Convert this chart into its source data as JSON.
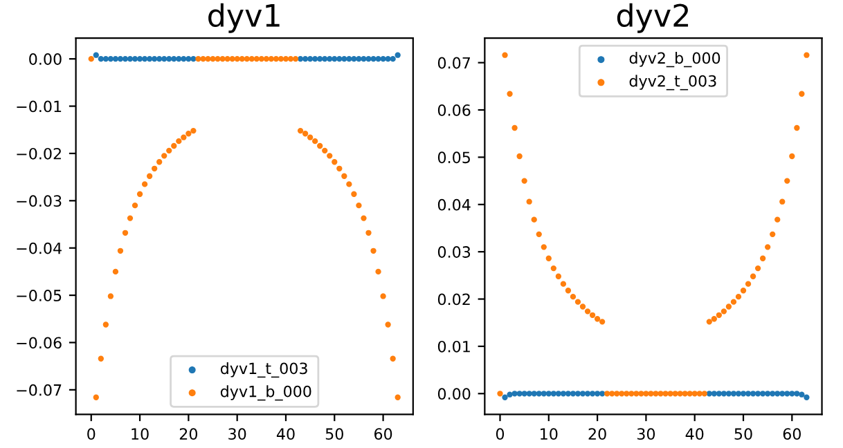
{
  "chart_data": [
    {
      "type": "scatter",
      "title": "dyv1",
      "x": [
        0,
        1,
        2,
        3,
        4,
        5,
        6,
        7,
        8,
        9,
        10,
        11,
        12,
        13,
        14,
        15,
        16,
        17,
        18,
        19,
        20,
        21,
        22,
        23,
        24,
        25,
        26,
        27,
        28,
        29,
        30,
        31,
        32,
        33,
        34,
        35,
        36,
        37,
        38,
        39,
        40,
        41,
        42,
        43,
        44,
        45,
        46,
        47,
        48,
        49,
        50,
        51,
        52,
        53,
        54,
        55,
        56,
        57,
        58,
        59,
        60,
        61,
        62,
        63
      ],
      "series": [
        {
          "name": "dyv1_t_003",
          "color": "#1f77b4",
          "values": [
            null,
            0.0008,
            0,
            0,
            0,
            0,
            0,
            0,
            0,
            0,
            0,
            0,
            0,
            0,
            0,
            0,
            0,
            0,
            0,
            0,
            0,
            0,
            null,
            null,
            null,
            null,
            null,
            null,
            null,
            null,
            null,
            null,
            null,
            null,
            null,
            null,
            null,
            null,
            null,
            null,
            null,
            null,
            null,
            0,
            0,
            0,
            0,
            0,
            0,
            0,
            0,
            0,
            0,
            0,
            0,
            0,
            0,
            0,
            0,
            0,
            0,
            0,
            0,
            0.0008
          ]
        },
        {
          "name": "dyv1_b_000",
          "color": "#ff7f0e",
          "values": [
            0,
            -0.0716,
            -0.0634,
            -0.0562,
            -0.0502,
            -0.045,
            -0.0406,
            -0.0368,
            -0.0337,
            -0.031,
            -0.0286,
            -0.0265,
            -0.0248,
            -0.0232,
            -0.0218,
            -0.0205,
            -0.0194,
            -0.0184,
            -0.0174,
            -0.0166,
            -0.0158,
            -0.0152,
            0,
            0,
            0,
            0,
            0,
            0,
            0,
            0,
            0,
            0,
            0,
            0,
            0,
            0,
            0,
            0,
            0,
            0,
            0,
            0,
            0,
            -0.0152,
            -0.0158,
            -0.0166,
            -0.0174,
            -0.0184,
            -0.0194,
            -0.0205,
            -0.0218,
            -0.0232,
            -0.0248,
            -0.0265,
            -0.0286,
            -0.031,
            -0.0337,
            -0.0368,
            -0.0406,
            -0.045,
            -0.0502,
            -0.0562,
            -0.0634,
            -0.0716
          ]
        }
      ],
      "xlim": [
        -3.15,
        66.15
      ],
      "xticks": [
        0,
        10,
        20,
        30,
        40,
        50,
        60
      ],
      "ylim": [
        -0.0752,
        0.0044
      ],
      "yticks": [
        {
          "value": -0.07,
          "label": "−0.07"
        },
        {
          "value": -0.06,
          "label": "−0.06"
        },
        {
          "value": -0.05,
          "label": "−0.05"
        },
        {
          "value": -0.04,
          "label": "−0.04"
        },
        {
          "value": -0.03,
          "label": "−0.03"
        },
        {
          "value": -0.02,
          "label": "−0.02"
        },
        {
          "value": -0.01,
          "label": "−0.01"
        },
        {
          "value": 0,
          "label": "0.00"
        }
      ],
      "marker": "circle",
      "legend": "bottom",
      "grid": false
    },
    {
      "type": "scatter",
      "title": "dyv2",
      "x": [
        0,
        1,
        2,
        3,
        4,
        5,
        6,
        7,
        8,
        9,
        10,
        11,
        12,
        13,
        14,
        15,
        16,
        17,
        18,
        19,
        20,
        21,
        22,
        23,
        24,
        25,
        26,
        27,
        28,
        29,
        30,
        31,
        32,
        33,
        34,
        35,
        36,
        37,
        38,
        39,
        40,
        41,
        42,
        43,
        44,
        45,
        46,
        47,
        48,
        49,
        50,
        51,
        52,
        53,
        54,
        55,
        56,
        57,
        58,
        59,
        60,
        61,
        62,
        63
      ],
      "series": [
        {
          "name": "dyv2_b_000",
          "color": "#1f77b4",
          "values": [
            null,
            -0.0008,
            -0.0002,
            0,
            0,
            0,
            0,
            0,
            0,
            0,
            0,
            0,
            0,
            0,
            0,
            0,
            0,
            0,
            0,
            0,
            0,
            0,
            null,
            null,
            null,
            null,
            null,
            null,
            null,
            null,
            null,
            null,
            null,
            null,
            null,
            null,
            null,
            null,
            null,
            null,
            null,
            null,
            null,
            0,
            0,
            0,
            0,
            0,
            0,
            0,
            0,
            0,
            0,
            0,
            0,
            0,
            0,
            0,
            0,
            0,
            0,
            0,
            -0.0002,
            -0.0008
          ]
        },
        {
          "name": "dyv2_t_003",
          "color": "#ff7f0e",
          "values": [
            0,
            0.0716,
            0.0634,
            0.0562,
            0.0502,
            0.045,
            0.0406,
            0.0368,
            0.0337,
            0.031,
            0.0286,
            0.0265,
            0.0248,
            0.0232,
            0.0218,
            0.0205,
            0.0194,
            0.0184,
            0.0174,
            0.0166,
            0.0158,
            0.0152,
            0,
            0,
            0,
            0,
            0,
            0,
            0,
            0,
            0,
            0,
            0,
            0,
            0,
            0,
            0,
            0,
            0,
            0,
            0,
            0,
            0,
            0.0152,
            0.0158,
            0.0166,
            0.0174,
            0.0184,
            0.0194,
            0.0205,
            0.0218,
            0.0232,
            0.0248,
            0.0265,
            0.0286,
            0.031,
            0.0337,
            0.0368,
            0.0406,
            0.045,
            0.0502,
            0.0562,
            0.0634,
            0.0716
          ]
        }
      ],
      "xlim": [
        -3.15,
        66.15
      ],
      "xticks": [
        0,
        10,
        20,
        30,
        40,
        50,
        60
      ],
      "ylim": [
        -0.0044,
        0.0752
      ],
      "yticks": [
        {
          "value": 0,
          "label": "0.00"
        },
        {
          "value": 0.01,
          "label": "0.01"
        },
        {
          "value": 0.02,
          "label": "0.02"
        },
        {
          "value": 0.03,
          "label": "0.03"
        },
        {
          "value": 0.04,
          "label": "0.04"
        },
        {
          "value": 0.05,
          "label": "0.05"
        },
        {
          "value": 0.06,
          "label": "0.06"
        },
        {
          "value": 0.07,
          "label": "0.07"
        }
      ],
      "marker": "circle",
      "legend": "top",
      "grid": false
    }
  ]
}
